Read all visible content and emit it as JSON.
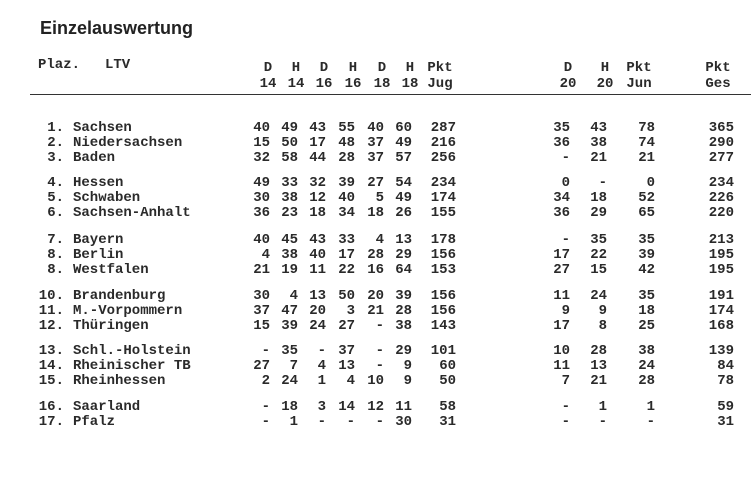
{
  "title": "Einzelauswertung",
  "header": {
    "plaz": "Plaz.",
    "ltv": "LTV",
    "columns": [
      {
        "top": "D",
        "bottom": "14"
      },
      {
        "top": "H",
        "bottom": "14"
      },
      {
        "top": "D",
        "bottom": "16"
      },
      {
        "top": "H",
        "bottom": "16"
      },
      {
        "top": "D",
        "bottom": "18"
      },
      {
        "top": "H",
        "bottom": "18"
      },
      {
        "top": "Pkt",
        "bottom": "Jug"
      },
      {
        "top": "D",
        "bottom": "20"
      },
      {
        "top": "H",
        "bottom": "20"
      },
      {
        "top": "Pkt",
        "bottom": "Jun"
      },
      {
        "top": "Pkt",
        "bottom": "Ges"
      }
    ]
  },
  "rows": [
    {
      "rank": "1.",
      "name": "Sachsen",
      "values": [
        "40",
        "49",
        "43",
        "55",
        "40",
        "60",
        "287",
        "35",
        "43",
        "78",
        "365"
      ]
    },
    {
      "rank": "2.",
      "name": "Niedersachsen",
      "values": [
        "15",
        "50",
        "17",
        "48",
        "37",
        "49",
        "216",
        "36",
        "38",
        "74",
        "290"
      ]
    },
    {
      "rank": "3.",
      "name": "Baden",
      "values": [
        "32",
        "58",
        "44",
        "28",
        "37",
        "57",
        "256",
        "-",
        "21",
        "21",
        "277"
      ]
    },
    {
      "rank": "4.",
      "name": "Hessen",
      "values": [
        "49",
        "33",
        "32",
        "39",
        "27",
        "54",
        "234",
        "0",
        "-",
        "0",
        "234"
      ]
    },
    {
      "rank": "5.",
      "name": "Schwaben",
      "values": [
        "30",
        "38",
        "12",
        "40",
        "5",
        "49",
        "174",
        "34",
        "18",
        "52",
        "226"
      ]
    },
    {
      "rank": "6.",
      "name": "Sachsen-Anhalt",
      "values": [
        "36",
        "23",
        "18",
        "34",
        "18",
        "26",
        "155",
        "36",
        "29",
        "65",
        "220"
      ]
    },
    {
      "rank": "7.",
      "name": "Bayern",
      "values": [
        "40",
        "45",
        "43",
        "33",
        "4",
        "13",
        "178",
        "-",
        "35",
        "35",
        "213"
      ]
    },
    {
      "rank": "8.",
      "name": "Berlin",
      "values": [
        "4",
        "38",
        "40",
        "17",
        "28",
        "29",
        "156",
        "17",
        "22",
        "39",
        "195"
      ]
    },
    {
      "rank": "8.",
      "name": "Westfalen",
      "values": [
        "21",
        "19",
        "11",
        "22",
        "16",
        "64",
        "153",
        "27",
        "15",
        "42",
        "195"
      ]
    },
    {
      "rank": "10.",
      "name": "Brandenburg",
      "values": [
        "30",
        "4",
        "13",
        "50",
        "20",
        "39",
        "156",
        "11",
        "24",
        "35",
        "191"
      ]
    },
    {
      "rank": "11.",
      "name": "M.-Vorpommern",
      "values": [
        "37",
        "47",
        "20",
        "3",
        "21",
        "28",
        "156",
        "9",
        "9",
        "18",
        "174"
      ]
    },
    {
      "rank": "12.",
      "name": "Thüringen",
      "values": [
        "15",
        "39",
        "24",
        "27",
        "-",
        "38",
        "143",
        "17",
        "8",
        "25",
        "168"
      ]
    },
    {
      "rank": "13.",
      "name": "Schl.-Holstein",
      "values": [
        "-",
        "35",
        "-",
        "37",
        "-",
        "29",
        "101",
        "10",
        "28",
        "38",
        "139"
      ]
    },
    {
      "rank": "14.",
      "name": "Rheinischer TB",
      "values": [
        "27",
        "7",
        "4",
        "13",
        "-",
        "9",
        "60",
        "11",
        "13",
        "24",
        "84"
      ]
    },
    {
      "rank": "15.",
      "name": "Rheinhessen",
      "values": [
        "2",
        "24",
        "1",
        "4",
        "10",
        "9",
        "50",
        "7",
        "21",
        "28",
        "78"
      ]
    },
    {
      "rank": "16.",
      "name": "Saarland",
      "values": [
        "-",
        "18",
        "3",
        "14",
        "12",
        "11",
        "58",
        "-",
        "1",
        "1",
        "59"
      ]
    },
    {
      "rank": "17.",
      "name": "Pfalz",
      "values": [
        "-",
        "1",
        "-",
        "-",
        "-",
        "30",
        "31",
        "-",
        "-",
        "-",
        "31"
      ]
    }
  ]
}
